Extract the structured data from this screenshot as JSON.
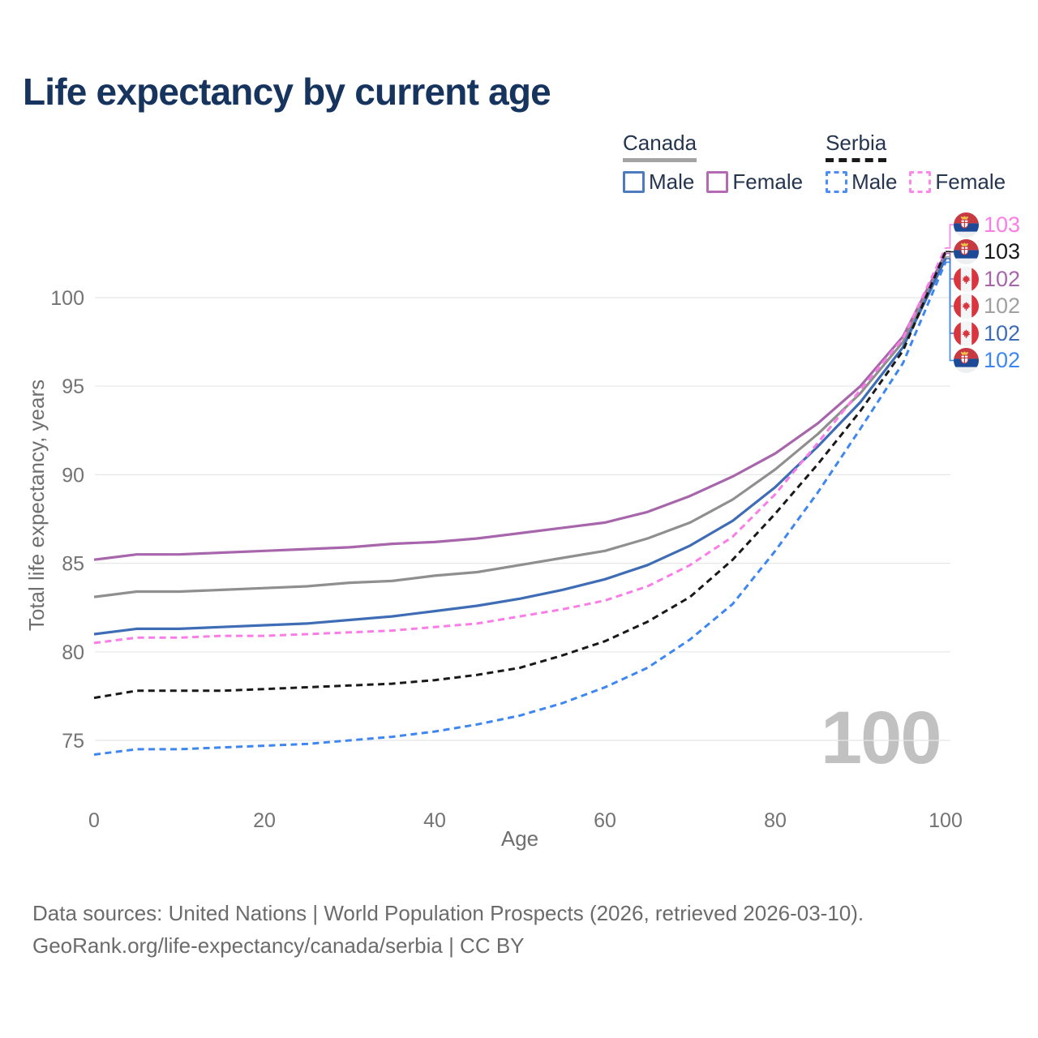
{
  "title": "Life expectancy by current age",
  "legend": {
    "groups": [
      {
        "label": "Canada",
        "underline_style": "solid",
        "underline_color": "#a3a3a3",
        "items": [
          {
            "label": "Male",
            "swatch_color": "#4d7cbe",
            "swatch_style": "solid"
          },
          {
            "label": "Female",
            "swatch_color": "#b56bb4",
            "swatch_style": "solid"
          }
        ]
      },
      {
        "label": "Serbia",
        "underline_style": "dashed",
        "underline_color": "#1a1a1a",
        "items": [
          {
            "label": "Male",
            "swatch_color": "#4b8cf7",
            "swatch_style": "dashed"
          },
          {
            "label": "Female",
            "swatch_color": "#fb86ec",
            "swatch_style": "dashed"
          }
        ]
      }
    ]
  },
  "chart_data": {
    "type": "line",
    "title": "Life expectancy by current age",
    "xlabel": "Age",
    "ylabel": "Total life expectancy, years",
    "x_ticks": [
      0,
      20,
      40,
      60,
      80,
      100
    ],
    "y_ticks": [
      75,
      80,
      85,
      90,
      95,
      100
    ],
    "xlim": [
      0,
      100
    ],
    "ylim": [
      73.5,
      103.5
    ],
    "grid": "horizontal",
    "watermark": "100",
    "x": [
      0,
      5,
      10,
      15,
      20,
      25,
      30,
      35,
      40,
      45,
      50,
      55,
      60,
      65,
      70,
      75,
      80,
      85,
      90,
      95,
      100
    ],
    "series": [
      {
        "name": "Canada Female",
        "country": "Canada",
        "sex": "Female",
        "color": "#a766ab",
        "dash": "solid",
        "values": [
          85.2,
          85.5,
          85.5,
          85.6,
          85.7,
          85.8,
          85.9,
          86.1,
          86.2,
          86.4,
          86.7,
          87.0,
          87.3,
          87.9,
          88.8,
          89.9,
          91.2,
          92.9,
          95.0,
          97.8,
          102.5
        ]
      },
      {
        "name": "Canada Both sexes",
        "country": "Canada",
        "sex": "Both",
        "color": "#8f8f8f",
        "dash": "solid",
        "values": [
          83.1,
          83.4,
          83.4,
          83.5,
          83.6,
          83.7,
          83.9,
          84.0,
          84.3,
          84.5,
          84.9,
          85.3,
          85.7,
          86.4,
          87.3,
          88.6,
          90.3,
          92.3,
          94.6,
          97.5,
          102.3
        ]
      },
      {
        "name": "Canada Male",
        "country": "Canada",
        "sex": "Male",
        "color": "#3e6db6",
        "dash": "solid",
        "values": [
          81.0,
          81.3,
          81.3,
          81.4,
          81.5,
          81.6,
          81.8,
          82.0,
          82.3,
          82.6,
          83.0,
          83.5,
          84.1,
          84.9,
          86.0,
          87.4,
          89.3,
          91.6,
          94.1,
          97.2,
          102.2
        ]
      },
      {
        "name": "Serbia Female",
        "country": "Serbia",
        "sex": "Female",
        "color": "#fa7de7",
        "dash": "dashed",
        "values": [
          80.5,
          80.8,
          80.8,
          80.9,
          80.9,
          81.0,
          81.1,
          81.2,
          81.4,
          81.6,
          82.0,
          82.4,
          82.9,
          83.7,
          84.9,
          86.5,
          88.9,
          91.8,
          94.8,
          97.7,
          102.8
        ]
      },
      {
        "name": "Serbia Both sexes",
        "country": "Serbia",
        "sex": "Both",
        "color": "#191919",
        "dash": "dashed",
        "values": [
          77.4,
          77.8,
          77.8,
          77.8,
          77.9,
          78.0,
          78.1,
          78.2,
          78.4,
          78.7,
          79.1,
          79.8,
          80.6,
          81.7,
          83.1,
          85.2,
          87.8,
          90.6,
          93.6,
          97.0,
          102.6
        ]
      },
      {
        "name": "Serbia Male",
        "country": "Serbia",
        "sex": "Male",
        "color": "#3e86f0",
        "dash": "dashed",
        "values": [
          74.2,
          74.5,
          74.5,
          74.6,
          74.7,
          74.8,
          75.0,
          75.2,
          75.5,
          75.9,
          76.4,
          77.1,
          78.0,
          79.1,
          80.7,
          82.7,
          85.7,
          89.0,
          92.6,
          96.3,
          102.0
        ]
      }
    ],
    "endpoint_labels": [
      {
        "value": "103",
        "flag": "serbia",
        "series": "Serbia Female",
        "color": "#fa7de7"
      },
      {
        "value": "103",
        "flag": "serbia",
        "series": "Serbia Both sexes",
        "color": "#191919"
      },
      {
        "value": "102",
        "flag": "canada",
        "series": "Canada Female",
        "color": "#a766ab"
      },
      {
        "value": "102",
        "flag": "canada",
        "series": "Canada Both sexes",
        "color": "#a0a0a0"
      },
      {
        "value": "102",
        "flag": "canada",
        "series": "Canada Male",
        "color": "#3e6db6"
      },
      {
        "value": "102",
        "flag": "serbia",
        "series": "Serbia Male",
        "color": "#3e86f0"
      }
    ]
  },
  "footer": {
    "line1": "Data sources: United Nations | World Population Prospects (2026, retrieved 2026-03-10).",
    "line2": "GeoRank.org/life-expectancy/canada/serbia | CC BY"
  }
}
